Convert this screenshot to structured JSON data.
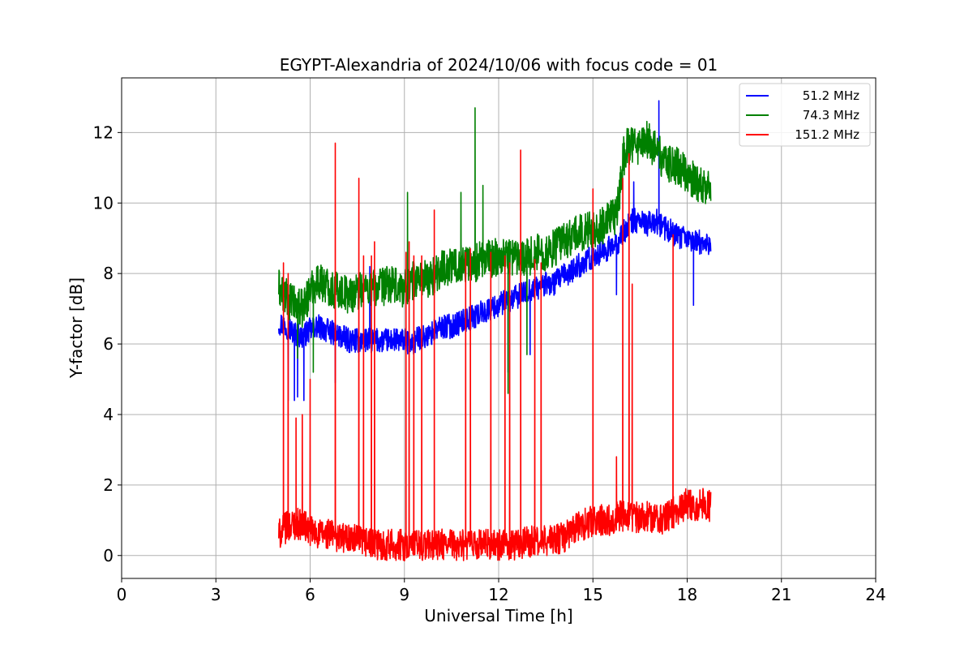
{
  "chart_data": {
    "type": "line",
    "title": "EGYPT-Alexandria of 2024/10/06 with focus code = 01",
    "xlabel": "Universal Time [h]",
    "ylabel": "Y-factor [dB]",
    "xlim": [
      0,
      24
    ],
    "ylim": [
      -0.65,
      13.55
    ],
    "xticks": [
      0,
      3,
      6,
      9,
      12,
      15,
      18,
      21,
      24
    ],
    "yticks": [
      0,
      2,
      4,
      6,
      8,
      10,
      12
    ],
    "grid": true,
    "legend_position": "top-right",
    "series": [
      {
        "name": "51.2 MHz",
        "color": "#0000ff",
        "x": [
          5.0,
          5.25,
          5.5,
          5.75,
          6.0,
          6.25,
          6.5,
          6.75,
          7.0,
          7.25,
          7.5,
          7.75,
          8.0,
          8.25,
          8.5,
          8.75,
          9.0,
          9.25,
          9.5,
          9.75,
          10.0,
          10.25,
          10.5,
          10.75,
          11.0,
          11.25,
          11.5,
          11.75,
          12.0,
          12.25,
          12.5,
          12.75,
          13.0,
          13.25,
          13.5,
          13.75,
          14.0,
          14.25,
          14.5,
          14.75,
          15.0,
          15.25,
          15.5,
          15.75,
          16.0,
          16.25,
          16.5,
          16.75,
          17.0,
          17.25,
          17.5,
          17.75,
          18.0,
          18.25,
          18.5,
          18.75
        ],
        "mean": [
          6.6,
          6.5,
          6.3,
          6.2,
          6.4,
          6.5,
          6.4,
          6.3,
          6.2,
          6.1,
          6.1,
          6.1,
          6.1,
          6.1,
          6.1,
          6.1,
          6.1,
          6.0,
          6.2,
          6.2,
          6.4,
          6.5,
          6.5,
          6.6,
          6.7,
          6.8,
          6.9,
          7.0,
          7.1,
          7.2,
          7.3,
          7.4,
          7.5,
          7.6,
          7.7,
          7.7,
          7.9,
          8.0,
          8.2,
          8.3,
          8.5,
          8.6,
          8.7,
          8.8,
          9.2,
          9.5,
          9.5,
          9.4,
          9.5,
          9.3,
          9.2,
          9.0,
          9.0,
          8.9,
          8.9,
          8.8
        ],
        "noise": 0.35,
        "spikes": [
          [
            5.3,
            4.4
          ],
          [
            5.5,
            4.4
          ],
          [
            5.6,
            4.5
          ],
          [
            5.8,
            4.4
          ],
          [
            6.8,
            4.9
          ],
          [
            7.9,
            8.2
          ],
          [
            12.3,
            5.2
          ],
          [
            13.0,
            5.7
          ],
          [
            15.75,
            7.4
          ],
          [
            16.3,
            10.6
          ],
          [
            17.1,
            12.9
          ],
          [
            18.2,
            7.1
          ]
        ]
      },
      {
        "name": "74.3 MHz",
        "color": "#008000",
        "x": [
          5.0,
          5.25,
          5.5,
          5.75,
          6.0,
          6.25,
          6.5,
          6.75,
          7.0,
          7.25,
          7.5,
          7.75,
          8.0,
          8.25,
          8.5,
          8.75,
          9.0,
          9.25,
          9.5,
          9.75,
          10.0,
          10.25,
          10.5,
          10.75,
          11.0,
          11.25,
          11.5,
          11.75,
          12.0,
          12.25,
          12.5,
          12.75,
          13.0,
          13.25,
          13.5,
          13.75,
          14.0,
          14.25,
          14.5,
          14.75,
          15.0,
          15.25,
          15.5,
          15.75,
          16.0,
          16.25,
          16.5,
          16.75,
          17.0,
          17.25,
          17.5,
          17.75,
          18.0,
          18.25,
          18.5,
          18.75
        ],
        "mean": [
          7.6,
          7.3,
          7.1,
          7.0,
          7.5,
          7.8,
          7.7,
          7.5,
          7.5,
          7.4,
          7.5,
          7.6,
          7.6,
          7.6,
          7.7,
          7.6,
          7.6,
          7.8,
          7.9,
          7.8,
          8.0,
          8.2,
          8.2,
          8.3,
          8.3,
          8.3,
          8.4,
          8.4,
          8.5,
          8.5,
          8.5,
          8.5,
          8.5,
          8.6,
          8.6,
          8.7,
          8.9,
          9.0,
          9.1,
          9.2,
          9.3,
          9.3,
          9.5,
          9.6,
          11.5,
          11.7,
          11.6,
          11.8,
          11.5,
          11.2,
          11.1,
          11.0,
          10.8,
          10.6,
          10.5,
          10.5
        ],
        "noise": 0.55,
        "spikes": [
          [
            5.6,
            5.6
          ],
          [
            6.1,
            5.2
          ],
          [
            9.1,
            10.3
          ],
          [
            10.8,
            10.3
          ],
          [
            11.25,
            12.7
          ],
          [
            11.5,
            10.5
          ],
          [
            12.3,
            4.6
          ],
          [
            12.9,
            5.7
          ],
          [
            16.0,
            10.8
          ]
        ]
      },
      {
        "name": "151.2 MHz",
        "color": "#ff0000",
        "x": [
          5.0,
          5.25,
          5.5,
          5.75,
          6.0,
          6.25,
          6.5,
          6.75,
          7.0,
          7.25,
          7.5,
          7.75,
          8.0,
          8.25,
          8.5,
          8.75,
          9.0,
          9.25,
          9.5,
          9.75,
          10.0,
          10.25,
          10.5,
          10.75,
          11.0,
          11.25,
          11.5,
          11.75,
          12.0,
          12.25,
          12.5,
          12.75,
          13.0,
          13.25,
          13.5,
          13.75,
          14.0,
          14.25,
          14.5,
          14.75,
          15.0,
          15.25,
          15.5,
          15.75,
          16.0,
          16.25,
          16.5,
          16.75,
          17.0,
          17.25,
          17.5,
          17.75,
          18.0,
          18.25,
          18.5,
          18.75
        ],
        "mean": [
          0.6,
          0.8,
          0.9,
          0.9,
          0.7,
          0.6,
          0.6,
          0.6,
          0.5,
          0.5,
          0.4,
          0.4,
          0.3,
          0.3,
          0.3,
          0.3,
          0.3,
          0.3,
          0.3,
          0.3,
          0.3,
          0.3,
          0.3,
          0.3,
          0.3,
          0.3,
          0.3,
          0.3,
          0.3,
          0.3,
          0.3,
          0.35,
          0.4,
          0.4,
          0.4,
          0.45,
          0.5,
          0.6,
          0.8,
          0.9,
          1.0,
          1.0,
          1.0,
          1.1,
          1.1,
          1.1,
          1.1,
          1.1,
          1.1,
          1.0,
          1.2,
          1.3,
          1.5,
          1.4,
          1.5,
          1.4
        ],
        "noise": 0.45,
        "spikes": [
          [
            5.15,
            8.3
          ],
          [
            5.3,
            8.0
          ],
          [
            5.55,
            3.9
          ],
          [
            5.75,
            4.0
          ],
          [
            6.0,
            5.0
          ],
          [
            6.8,
            11.7
          ],
          [
            7.55,
            10.7
          ],
          [
            7.7,
            8.5
          ],
          [
            7.95,
            8.5
          ],
          [
            8.05,
            8.9
          ],
          [
            9.05,
            8.6
          ],
          [
            9.15,
            8.9
          ],
          [
            9.3,
            8.5
          ],
          [
            9.55,
            8.5
          ],
          [
            9.95,
            9.8
          ],
          [
            10.95,
            8.6
          ],
          [
            11.1,
            8.7
          ],
          [
            11.75,
            8.6
          ],
          [
            12.2,
            8.5
          ],
          [
            12.35,
            8.3
          ],
          [
            12.7,
            11.5
          ],
          [
            13.15,
            8.4
          ],
          [
            13.35,
            8.3
          ],
          [
            15.0,
            10.4
          ],
          [
            15.75,
            2.8
          ],
          [
            15.95,
            10.7
          ],
          [
            16.15,
            11.4
          ],
          [
            16.25,
            7.7
          ],
          [
            17.55,
            9.1
          ]
        ]
      }
    ]
  }
}
